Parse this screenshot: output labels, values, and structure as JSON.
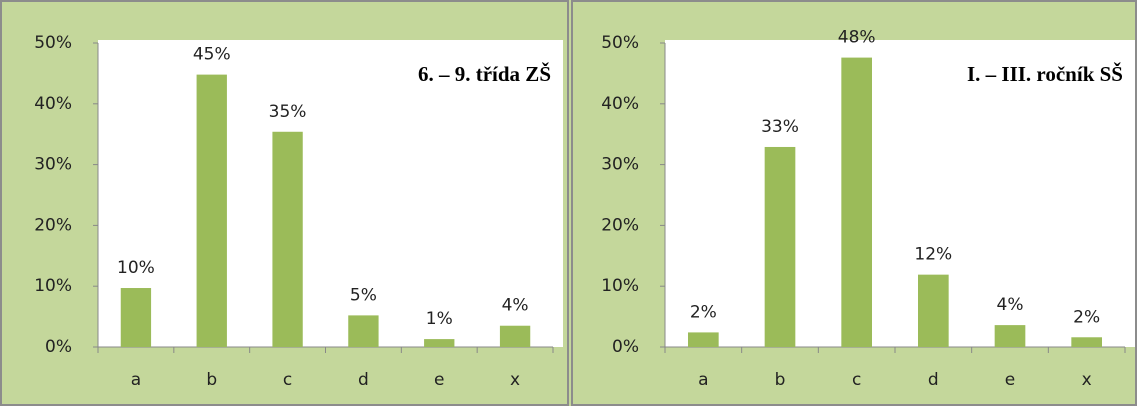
{
  "chart_data": [
    {
      "type": "bar",
      "title": "6. – 9. třída ZŠ",
      "categories": [
        "a",
        "b",
        "c",
        "d",
        "e",
        "x"
      ],
      "values": [
        9.7,
        44.8,
        35.4,
        5.2,
        1.3,
        3.5
      ],
      "value_labels": [
        "10%",
        "45%",
        "35%",
        "5%",
        "1%",
        "4%"
      ],
      "color": "#9bbb59",
      "ylim": [
        0,
        50
      ],
      "yticks": [
        {
          "value": 0,
          "label": "0%"
        },
        {
          "value": 10,
          "label": "10%"
        },
        {
          "value": 20,
          "label": "20%"
        },
        {
          "value": 30,
          "label": "30%"
        },
        {
          "value": 40,
          "label": "40%"
        },
        {
          "value": 50,
          "label": "50%"
        }
      ],
      "grid": false
    },
    {
      "type": "bar",
      "title": "I. – III. ročník SŠ",
      "categories": [
        "a",
        "b",
        "c",
        "d",
        "e",
        "x"
      ],
      "values": [
        2.4,
        32.9,
        47.6,
        11.9,
        3.6,
        1.6
      ],
      "value_labels": [
        "2%",
        "33%",
        "48%",
        "12%",
        "4%",
        "2%"
      ],
      "color": "#9bbb59",
      "ylim": [
        0,
        50
      ],
      "yticks": [
        {
          "value": 0,
          "label": "0%"
        },
        {
          "value": 10,
          "label": "10%"
        },
        {
          "value": 20,
          "label": "20%"
        },
        {
          "value": 30,
          "label": "30%"
        },
        {
          "value": 40,
          "label": "40%"
        },
        {
          "value": 50,
          "label": "50%"
        }
      ],
      "grid": false
    }
  ]
}
